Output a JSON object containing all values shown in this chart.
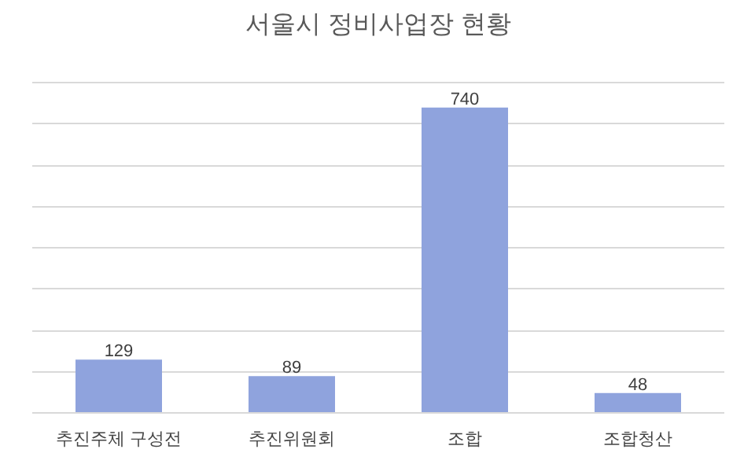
{
  "chart_data": {
    "type": "bar",
    "title": "서울시 정비사업장 현황",
    "categories": [
      "추진주체 구성전",
      "추진위원회",
      "조합",
      "조합청산"
    ],
    "values": [
      129,
      89,
      740,
      48
    ],
    "color": "#8fa3dd",
    "grid": "y",
    "tick_labels": "x",
    "data_labels": true
  }
}
